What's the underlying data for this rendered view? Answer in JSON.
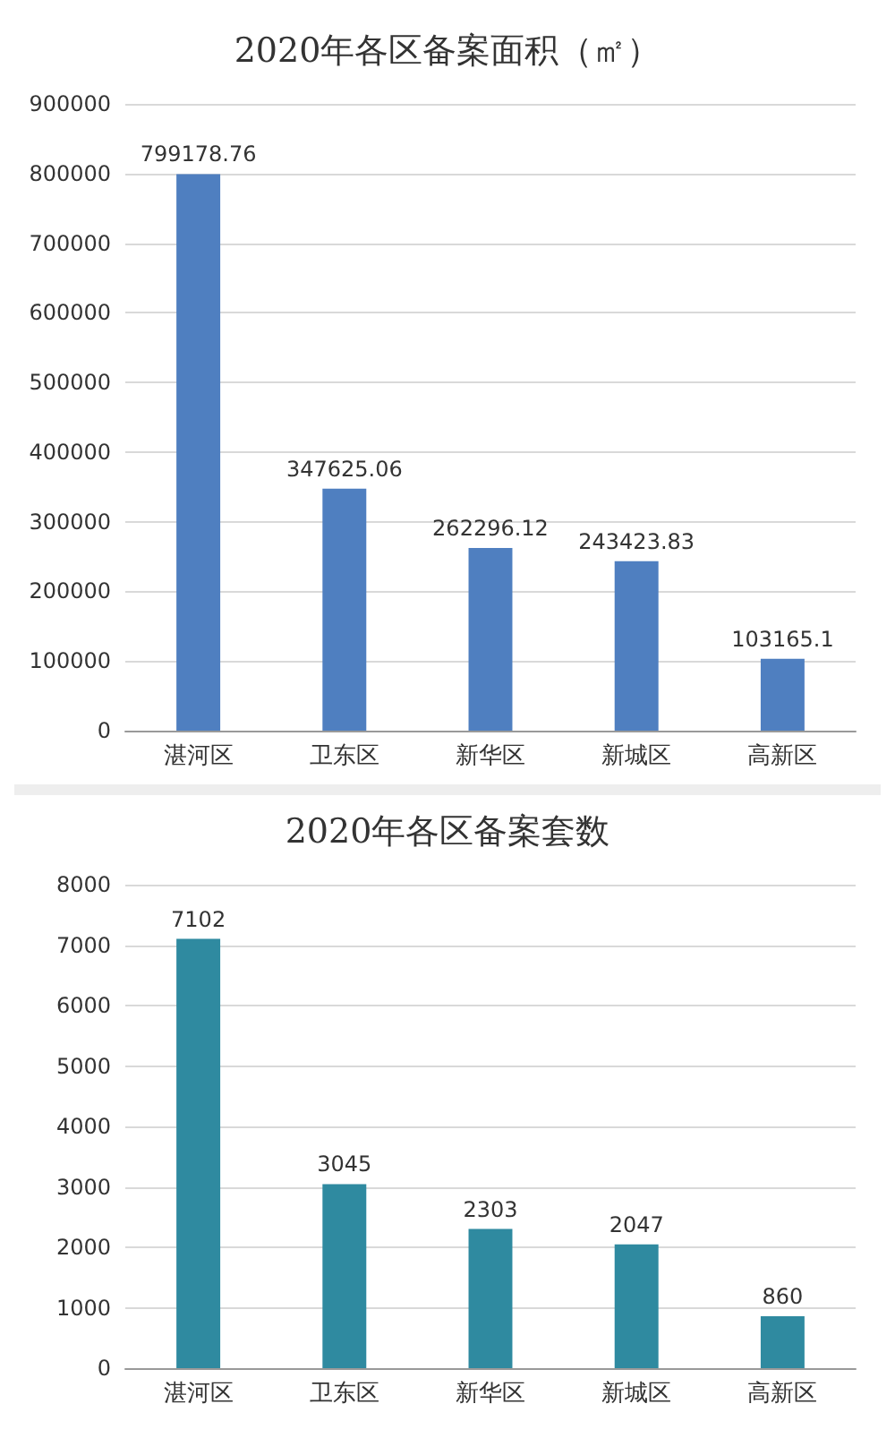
{
  "chart_data": [
    {
      "type": "bar",
      "title": "2020年各区备案面积（㎡）",
      "categories": [
        "湛河区",
        "卫东区",
        "新华区",
        "新城区",
        "高新区"
      ],
      "values": [
        799178.76,
        347625.06,
        262296.12,
        243423.83,
        103165.1
      ],
      "color": "#4f7fc0",
      "ylim": [
        0,
        900000
      ],
      "yticks": [
        0,
        100000,
        200000,
        300000,
        400000,
        500000,
        600000,
        700000,
        800000,
        900000
      ],
      "grid": "y",
      "data_labels": true
    },
    {
      "type": "bar",
      "title": "2020年各区备案套数",
      "categories": [
        "湛河区",
        "卫东区",
        "新华区",
        "新城区",
        "高新区"
      ],
      "values": [
        7102,
        3045,
        2303,
        2047,
        860
      ],
      "color": "#2f8aa0",
      "ylim": [
        0,
        8000
      ],
      "yticks": [
        0,
        1000,
        2000,
        3000,
        4000,
        5000,
        6000,
        7000,
        8000
      ],
      "grid": "y",
      "data_labels": true
    }
  ]
}
